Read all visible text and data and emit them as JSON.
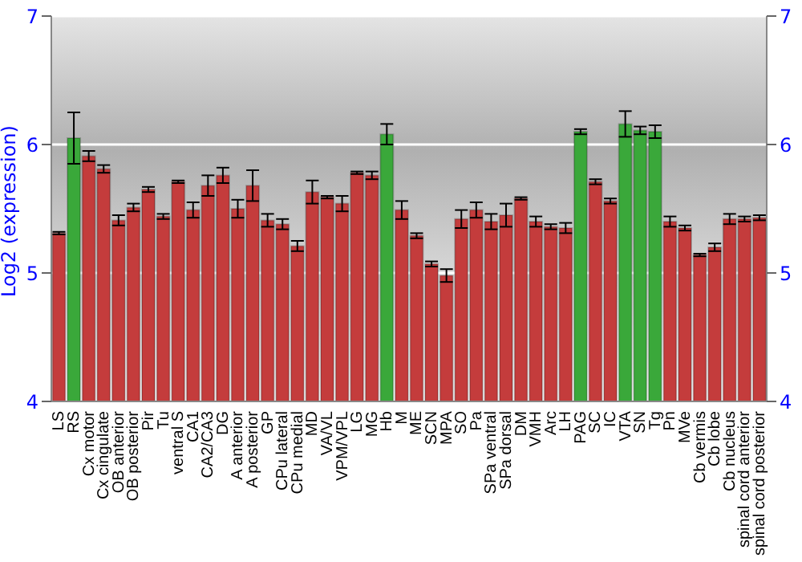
{
  "chart_data": {
    "type": "bar",
    "ylabel": "Log2 (expression)",
    "categories": [
      "LS",
      "RS",
      "Cx motor",
      "Cx cingulate",
      "OB anterior",
      "OB posterior",
      "Pir",
      "Tu",
      "ventral S",
      "CA1",
      "CA2/CA3",
      "DG",
      "A anterior",
      "A posterior",
      "GP",
      "CPu lateral",
      "CPu medial",
      "MD",
      "VA/VL",
      "VPM/VPL",
      "LG",
      "MG",
      "Hb",
      "M",
      "ME",
      "SCN",
      "MPA",
      "SO",
      "Pa",
      "SPa ventral",
      "SPa dorsal",
      "DM",
      "VMH",
      "Arc",
      "LH",
      "PAG",
      "SC",
      "IC",
      "VTA",
      "SN",
      "Tg",
      "Pn",
      "MVe",
      "Cb vermis",
      "Cb lobe",
      "Cb nucleus",
      "spinal cord anterior",
      "spinal cord posterior"
    ],
    "values": [
      5.31,
      6.05,
      5.91,
      5.81,
      5.41,
      5.51,
      5.65,
      5.44,
      5.71,
      5.49,
      5.68,
      5.76,
      5.5,
      5.68,
      5.41,
      5.38,
      5.21,
      5.63,
      5.59,
      5.54,
      5.78,
      5.76,
      6.08,
      5.49,
      5.29,
      5.07,
      4.98,
      5.42,
      5.49,
      5.4,
      5.45,
      5.58,
      5.4,
      5.36,
      5.35,
      6.1,
      5.71,
      5.56,
      6.16,
      6.11,
      6.1,
      5.4,
      5.35,
      5.14,
      5.2,
      5.42,
      5.42,
      5.43
    ],
    "errors": [
      0.01,
      0.2,
      0.04,
      0.03,
      0.04,
      0.03,
      0.02,
      0.02,
      0.01,
      0.06,
      0.08,
      0.06,
      0.07,
      0.12,
      0.05,
      0.04,
      0.04,
      0.09,
      0.01,
      0.06,
      0.01,
      0.03,
      0.08,
      0.07,
      0.02,
      0.02,
      0.05,
      0.07,
      0.06,
      0.06,
      0.09,
      0.01,
      0.04,
      0.02,
      0.04,
      0.02,
      0.02,
      0.02,
      0.1,
      0.03,
      0.05,
      0.04,
      0.02,
      0.01,
      0.03,
      0.04,
      0.02,
      0.02
    ],
    "colors": [
      "#c43c3c",
      "#3aa83a",
      "#c43c3c",
      "#c43c3c",
      "#c43c3c",
      "#c43c3c",
      "#c43c3c",
      "#c43c3c",
      "#c43c3c",
      "#c43c3c",
      "#c43c3c",
      "#c43c3c",
      "#c43c3c",
      "#c43c3c",
      "#c43c3c",
      "#c43c3c",
      "#c43c3c",
      "#c43c3c",
      "#c43c3c",
      "#c43c3c",
      "#c43c3c",
      "#c43c3c",
      "#3aa83a",
      "#c43c3c",
      "#c43c3c",
      "#c43c3c",
      "#c43c3c",
      "#c43c3c",
      "#c43c3c",
      "#c43c3c",
      "#c43c3c",
      "#c43c3c",
      "#c43c3c",
      "#c43c3c",
      "#c43c3c",
      "#3aa83a",
      "#c43c3c",
      "#c43c3c",
      "#3aa83a",
      "#3aa83a",
      "#3aa83a",
      "#c43c3c",
      "#c43c3c",
      "#c43c3c",
      "#c43c3c",
      "#c43c3c",
      "#c43c3c",
      "#c43c3c"
    ],
    "ylim": [
      4,
      7
    ],
    "yticks": [
      4,
      5,
      6,
      7
    ],
    "y2lim": [
      4,
      7
    ],
    "y2ticks": [
      4,
      5,
      6,
      7
    ],
    "grid": "y"
  }
}
